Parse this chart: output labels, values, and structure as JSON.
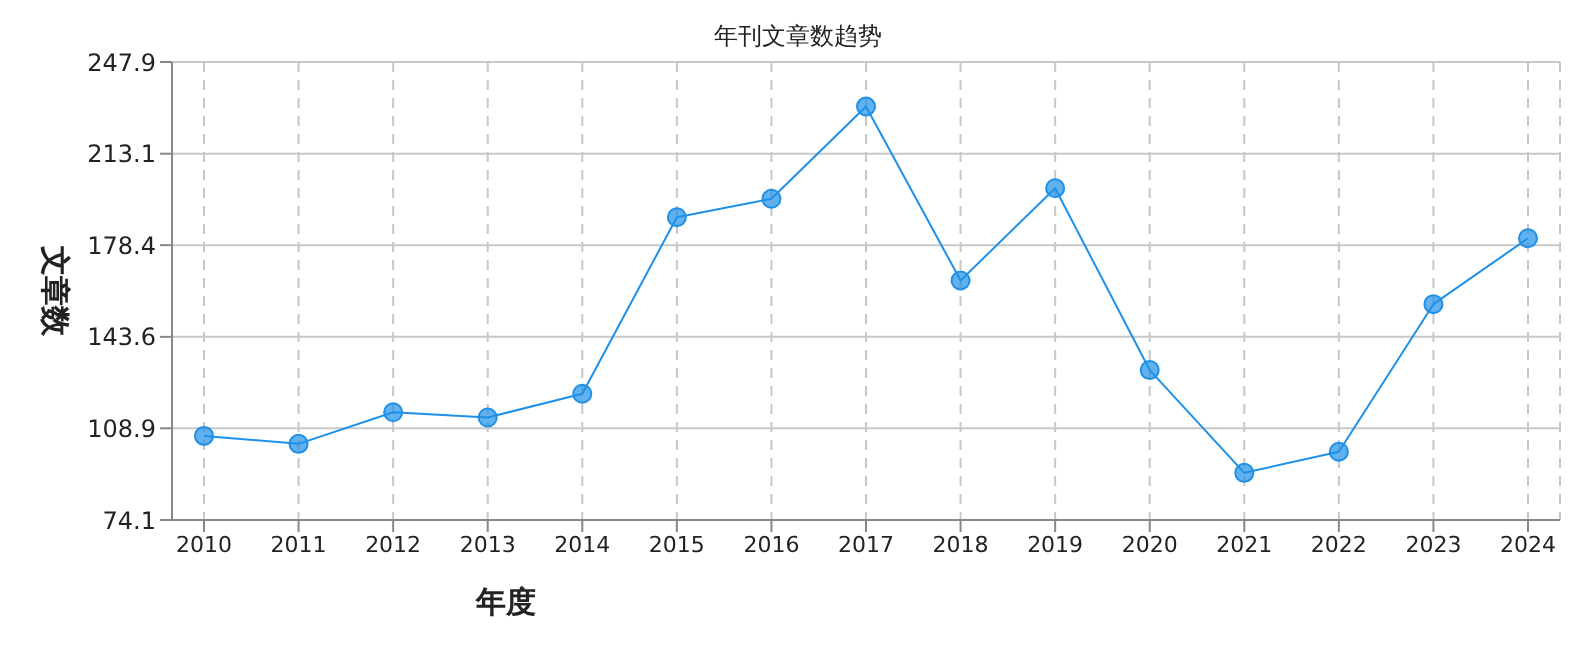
{
  "chart_data": {
    "type": "line",
    "title": "年刊文章数趋势",
    "xlabel": "年度",
    "ylabel": "文章数",
    "categories": [
      "2010",
      "2011",
      "2012",
      "2013",
      "2014",
      "2015",
      "2016",
      "2017",
      "2018",
      "2019",
      "2020",
      "2021",
      "2022",
      "2023",
      "2024"
    ],
    "series": [
      {
        "color": "#1e90e8",
        "values": [
          106,
          103,
          115,
          113,
          122,
          189,
          196,
          231,
          165,
          200,
          131,
          92,
          100,
          156,
          181
        ]
      }
    ],
    "ylim": [
      74.1,
      247.9
    ],
    "yticks": [
      74.1,
      108.9,
      143.6,
      178.4,
      213.1,
      247.9
    ],
    "grid": true,
    "legend": false,
    "marker": "circle",
    "line_style": "solid"
  }
}
